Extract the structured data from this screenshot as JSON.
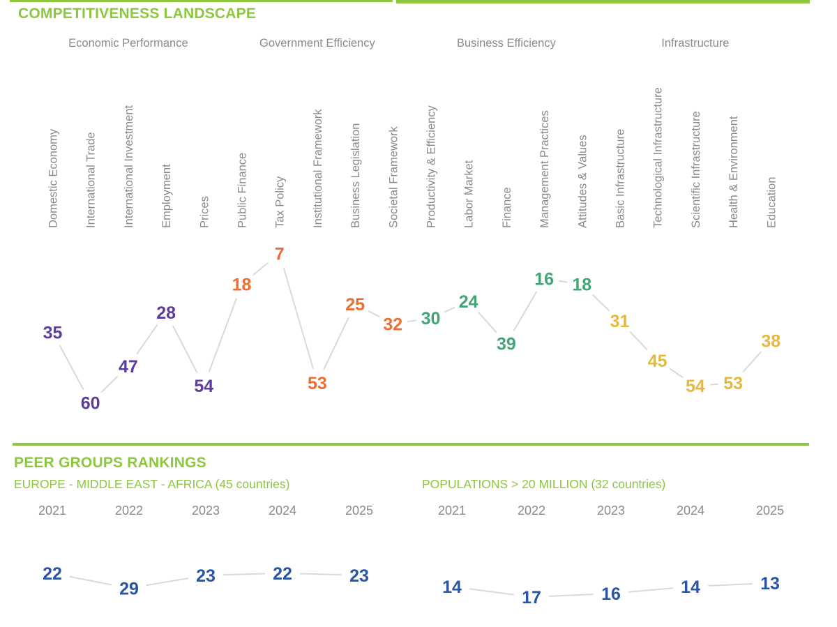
{
  "sections": {
    "landscape": {
      "title": "COMPETITIVENESS LANDSCAPE"
    },
    "peer": {
      "title": "PEER GROUPS RANKINGS"
    }
  },
  "colors": {
    "accent_green": "#8dc63f",
    "economic_performance_purple": "#5c3d9e",
    "government_efficiency_orange": "#ec6e33",
    "business_efficiency_green": "#42a577",
    "infrastructure_gold": "#e5b93d",
    "peer_rank_blue": "#2a54a4",
    "label_gray": "#8a8a8a",
    "connector_gray": "#d9d9d9"
  },
  "chart_data": [
    {
      "id": "competitiveness-landscape",
      "type": "line",
      "title": "COMPETITIVENESS LANDSCAPE",
      "value_meaning": "rank (lower rank plotted higher, no visible axis, no gridlines)",
      "ylim_hint": [
        1,
        64
      ],
      "groups": [
        {
          "label": "Economic Performance",
          "color": "#5c3d9e",
          "categories": [
            "Domestic Economy",
            "International Trade",
            "International Investment",
            "Employment",
            "Prices"
          ],
          "values": [
            35,
            60,
            47,
            28,
            54
          ]
        },
        {
          "label": "Government Efficiency",
          "color": "#ec6e33",
          "categories": [
            "Public Finance",
            "Tax Policy",
            "Institutional Framework",
            "Business Legislation",
            "Societal Framework"
          ],
          "values": [
            18,
            7,
            53,
            25,
            32
          ]
        },
        {
          "label": "Business Efficiency",
          "color": "#42a577",
          "categories": [
            "Productivity & Efficiency",
            "Labor Market",
            "Finance",
            "Management Practices",
            "Attitudes & Values"
          ],
          "values": [
            30,
            24,
            39,
            16,
            18
          ]
        },
        {
          "label": "Infrastructure",
          "color": "#e5b93d",
          "categories": [
            "Basic Infrastructure",
            "Technological Infrastructure",
            "Scientific Infrastructure",
            "Health & Environment",
            "Education"
          ],
          "values": [
            31,
            45,
            54,
            53,
            38
          ]
        }
      ]
    },
    {
      "id": "peer-emea",
      "type": "line",
      "title": "EUROPE - MIDDLE EAST - AFRICA (45 countries)",
      "categories": [
        "2021",
        "2022",
        "2023",
        "2024",
        "2025"
      ],
      "values": [
        22,
        29,
        23,
        22,
        23
      ],
      "color": "#2a54a4",
      "value_meaning": "rank (lower rank plotted higher)"
    },
    {
      "id": "peer-population",
      "type": "line",
      "title": "POPULATIONS > 20 MILLION (32 countries)",
      "categories": [
        "2021",
        "2022",
        "2023",
        "2024",
        "2025"
      ],
      "values": [
        14,
        17,
        16,
        14,
        13
      ],
      "color": "#2a54a4",
      "value_meaning": "rank (lower rank plotted higher)"
    }
  ]
}
